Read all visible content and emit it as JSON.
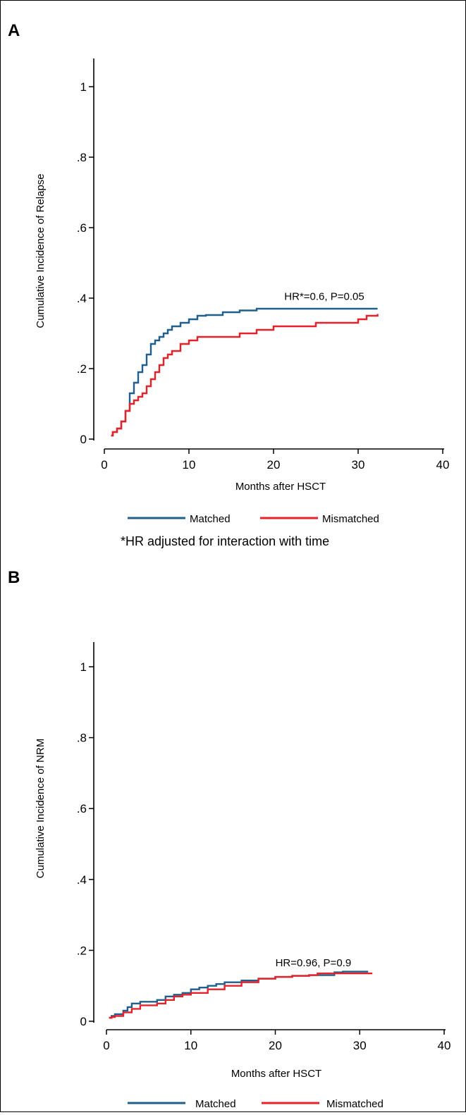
{
  "chart_data": [
    {
      "panel": "A",
      "type": "line",
      "step": true,
      "xlabel": "Months after HSCT",
      "ylabel": "Cumulative Incidence of Relapse",
      "xlim": [
        0,
        40
      ],
      "ylim": [
        0,
        1
      ],
      "xticks": [
        0,
        10,
        20,
        30,
        40
      ],
      "xtick_labels": [
        "0",
        "10",
        "20",
        "30",
        "40"
      ],
      "yticks": [
        0,
        0.2,
        0.4,
        0.6,
        0.8,
        1
      ],
      "ytick_labels": [
        "0",
        ".2",
        ".4",
        ".6",
        ".8",
        "1"
      ],
      "grid": false,
      "legend": "bottom",
      "annotation": {
        "text": "HR*=0.6, P=0.05",
        "x": 26,
        "y": 0.395
      },
      "footnote": "*HR adjusted for interaction with time",
      "series": [
        {
          "name": "Matched",
          "color": "#1f5f8b",
          "x": [
            0.8,
            1,
            1.5,
            2,
            2.5,
            3,
            3.5,
            4,
            4.5,
            5,
            5.5,
            6,
            6.5,
            7,
            7.5,
            8,
            9,
            10,
            11,
            12,
            14,
            16,
            18,
            20,
            25,
            30,
            32.3
          ],
          "y": [
            0.01,
            0.02,
            0.03,
            0.05,
            0.08,
            0.13,
            0.16,
            0.19,
            0.21,
            0.24,
            0.27,
            0.28,
            0.29,
            0.3,
            0.31,
            0.32,
            0.33,
            0.34,
            0.35,
            0.352,
            0.36,
            0.365,
            0.37,
            0.37,
            0.37,
            0.37,
            0.37
          ]
        },
        {
          "name": "Mismatched",
          "color": "#e8202a",
          "x": [
            0.8,
            1,
            1.5,
            2,
            2.5,
            3,
            3.5,
            4,
            4.5,
            5,
            5.5,
            6,
            6.5,
            7,
            7.5,
            8,
            9,
            10,
            11,
            14,
            16,
            18,
            20,
            22,
            25,
            28,
            30,
            31,
            32.3
          ],
          "y": [
            0.01,
            0.02,
            0.03,
            0.05,
            0.08,
            0.1,
            0.11,
            0.12,
            0.13,
            0.15,
            0.17,
            0.19,
            0.21,
            0.23,
            0.24,
            0.25,
            0.27,
            0.28,
            0.29,
            0.29,
            0.3,
            0.31,
            0.32,
            0.32,
            0.33,
            0.33,
            0.34,
            0.35,
            0.355
          ]
        }
      ]
    },
    {
      "panel": "B",
      "type": "line",
      "step": true,
      "xlabel": "Months after HSCT",
      "ylabel": "Cumulative Incidence of NRM",
      "xlim": [
        0,
        40
      ],
      "ylim": [
        0,
        1
      ],
      "xticks": [
        0,
        10,
        20,
        30,
        40
      ],
      "xtick_labels": [
        "0",
        "10",
        "20",
        "30",
        "40"
      ],
      "yticks": [
        0,
        0.2,
        0.4,
        0.6,
        0.8,
        1
      ],
      "ytick_labels": [
        "0",
        ".2",
        ".4",
        ".6",
        ".8",
        "1"
      ],
      "grid": false,
      "legend": "bottom",
      "annotation": {
        "text": "HR=0.96, P=0.9",
        "x": 24.5,
        "y": 0.155
      },
      "series": [
        {
          "name": "Matched",
          "color": "#1f5f8b",
          "x": [
            0.3,
            0.6,
            1,
            2,
            2.5,
            3,
            4,
            6,
            7,
            8,
            9,
            10,
            11,
            12,
            13,
            14,
            16,
            18,
            20,
            22,
            24,
            26,
            27,
            28,
            30,
            31
          ],
          "y": [
            0.01,
            0.015,
            0.02,
            0.03,
            0.04,
            0.05,
            0.055,
            0.06,
            0.07,
            0.075,
            0.08,
            0.09,
            0.095,
            0.1,
            0.105,
            0.11,
            0.115,
            0.12,
            0.125,
            0.128,
            0.13,
            0.13,
            0.138,
            0.14,
            0.14,
            0.14
          ]
        },
        {
          "name": "Mismatched",
          "color": "#e8202a",
          "x": [
            0.3,
            0.6,
            1,
            2,
            3,
            4,
            6,
            7,
            8,
            9,
            10,
            12,
            14,
            16,
            18,
            20,
            22,
            24,
            25,
            27,
            28,
            30,
            31.5
          ],
          "y": [
            0.01,
            0.012,
            0.015,
            0.025,
            0.035,
            0.045,
            0.05,
            0.06,
            0.07,
            0.075,
            0.08,
            0.09,
            0.1,
            0.11,
            0.12,
            0.125,
            0.128,
            0.13,
            0.135,
            0.135,
            0.135,
            0.135,
            0.135
          ]
        }
      ]
    }
  ]
}
